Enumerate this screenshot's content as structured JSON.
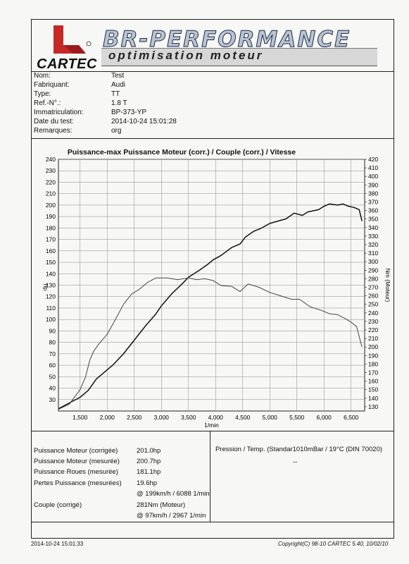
{
  "header": {
    "cartec_logo_text": "CARTEC",
    "brand_title": "BR-PERFORMANCE",
    "brand_subtitle": "optimisation moteur"
  },
  "vehicle_info": [
    {
      "label": "Nom:",
      "value": "Test"
    },
    {
      "label": "Fabriquant:",
      "value": "Audi"
    },
    {
      "label": "Type:",
      "value": "TT"
    },
    {
      "label": "Ref.-N°.:",
      "value": "1.8 T"
    },
    {
      "label": "Immatriculation:",
      "value": "BP-373-YP"
    },
    {
      "label": "Date du test:",
      "value": "2014-10-24 15:01:28"
    },
    {
      "label": "Remarques:",
      "value": "org"
    }
  ],
  "chart_data": {
    "type": "line",
    "title": "Puissance-max Puissance Moteur (corr.) / Couple (corr.) / Vitesse",
    "xlabel": "1/min",
    "ylabel_left": "hp",
    "ylabel_right": "Nm (Moteur)",
    "xlim": [
      1100,
      6750
    ],
    "ylim_left": [
      20,
      240
    ],
    "ylim_right": [
      125,
      420
    ],
    "x_ticks": [
      "1,500",
      "2,000",
      "2,500",
      "3,000",
      "3,500",
      "4,000",
      "4,500",
      "5,000",
      "5,500",
      "6,000",
      "6,500"
    ],
    "y_ticks_left": [
      "30",
      "40",
      "50",
      "60",
      "70",
      "80",
      "90",
      "100",
      "110",
      "120",
      "130",
      "140",
      "150",
      "160",
      "170",
      "180",
      "190",
      "200",
      "210",
      "220",
      "230",
      "240"
    ],
    "y_ticks_right": [
      "130",
      "140",
      "150",
      "160",
      "170",
      "180",
      "190",
      "200",
      "210",
      "220",
      "230",
      "240",
      "250",
      "260",
      "270",
      "280",
      "290",
      "300",
      "310",
      "320",
      "330",
      "340",
      "350",
      "360",
      "370",
      "380",
      "390",
      "400",
      "410",
      "420"
    ],
    "grid": true,
    "series": [
      {
        "axis": "left",
        "color": "#111111",
        "points": [
          [
            1100,
            22
          ],
          [
            1300,
            27
          ],
          [
            1500,
            32
          ],
          [
            1650,
            38
          ],
          [
            1800,
            48
          ],
          [
            1950,
            54
          ],
          [
            2100,
            60
          ],
          [
            2300,
            70
          ],
          [
            2500,
            82
          ],
          [
            2700,
            94
          ],
          [
            2900,
            105
          ],
          [
            3000,
            112
          ],
          [
            3200,
            123
          ],
          [
            3400,
            132
          ],
          [
            3500,
            137
          ],
          [
            3700,
            143
          ],
          [
            3850,
            148
          ],
          [
            3950,
            152
          ],
          [
            4100,
            156
          ],
          [
            4300,
            163
          ],
          [
            4450,
            166
          ],
          [
            4550,
            172
          ],
          [
            4700,
            177
          ],
          [
            4850,
            180
          ],
          [
            5000,
            184
          ],
          [
            5150,
            186
          ],
          [
            5300,
            188
          ],
          [
            5450,
            193
          ],
          [
            5600,
            191
          ],
          [
            5700,
            194
          ],
          [
            5900,
            196
          ],
          [
            6000,
            199
          ],
          [
            6100,
            201
          ],
          [
            6250,
            200
          ],
          [
            6350,
            201
          ],
          [
            6450,
            199
          ],
          [
            6550,
            198
          ],
          [
            6650,
            196
          ],
          [
            6700,
            186
          ]
        ]
      },
      {
        "axis": "right",
        "color": "#444444",
        "points": [
          [
            1100,
            127
          ],
          [
            1300,
            133
          ],
          [
            1500,
            150
          ],
          [
            1600,
            165
          ],
          [
            1680,
            185
          ],
          [
            1750,
            195
          ],
          [
            1850,
            204
          ],
          [
            2000,
            215
          ],
          [
            2150,
            232
          ],
          [
            2300,
            250
          ],
          [
            2450,
            262
          ],
          [
            2600,
            268
          ],
          [
            2750,
            276
          ],
          [
            2900,
            281
          ],
          [
            2967,
            281
          ],
          [
            3100,
            281
          ],
          [
            3300,
            279
          ],
          [
            3500,
            281
          ],
          [
            3650,
            279
          ],
          [
            3800,
            280
          ],
          [
            3950,
            278
          ],
          [
            4100,
            272
          ],
          [
            4300,
            271
          ],
          [
            4450,
            265
          ],
          [
            4600,
            274
          ],
          [
            4800,
            270
          ],
          [
            5000,
            264
          ],
          [
            5200,
            260
          ],
          [
            5400,
            256
          ],
          [
            5550,
            256
          ],
          [
            5750,
            247
          ],
          [
            5950,
            243
          ],
          [
            6100,
            239
          ],
          [
            6250,
            238
          ],
          [
            6400,
            233
          ],
          [
            6500,
            229
          ],
          [
            6600,
            224
          ],
          [
            6700,
            200
          ]
        ]
      }
    ]
  },
  "results": {
    "rows": [
      {
        "label": "Puissance Moteur (corrigée)",
        "value": "201.0hp"
      },
      {
        "label": "Puissance Moteur (mesurée)",
        "value": "200.7hp"
      },
      {
        "label": "Puissance Roues (mesurée)",
        "value": "181.1hp"
      },
      {
        "label": "Pertes Puissance (mesurées)",
        "value": "19.6hp"
      },
      {
        "label": "",
        "value": "@ 199km/h / 6088 1/min"
      },
      {
        "label": "Couple (corrigé)",
        "value": "281Nm (Moteur)"
      },
      {
        "label": "",
        "value": "@ 97km/h / 2967 1/min"
      }
    ],
    "pressure_label": "Pression / Temp. (Standar​1010mBar / 19°C  (DIN 70020)",
    "pressure_value": "--"
  },
  "footer": {
    "left": "2014-10-24 15:01:33",
    "right": "Copyright(C) 98-10 CARTEC 5.40, 10/02/10"
  }
}
